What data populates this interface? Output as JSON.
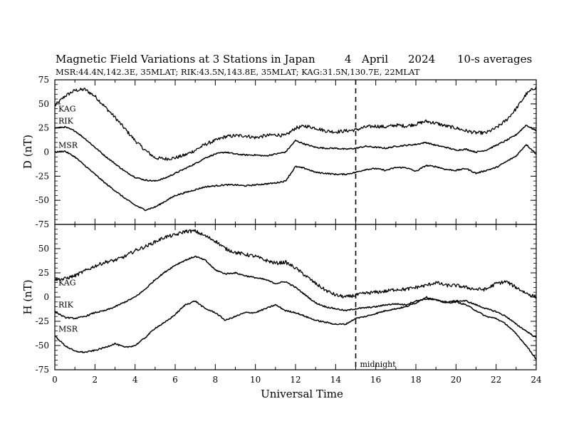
{
  "header": {
    "title": "Magnetic Field Variations at 3 Stations in Japan",
    "day": "4",
    "month": "April",
    "year": "2024",
    "averaging": "10-s averages",
    "stations": "MSR:44.4N,142.3E, 35MLAT;  RIK:43.5N,143.8E, 35MLAT;  KAG:31.5N,130.7E, 22MLAT"
  },
  "chart_data": [
    {
      "type": "line",
      "panel": "top",
      "ylabel": "D (nT)",
      "xlabel": "",
      "xlim": [
        0,
        24
      ],
      "ylim": [
        -75,
        75
      ],
      "yticks": [
        75,
        50,
        25,
        0,
        -25,
        -50,
        -75
      ],
      "ytick_labels": [
        "75",
        "50",
        "25",
        "0",
        "-25",
        "-50",
        "-75"
      ],
      "xticks": [
        0,
        2,
        4,
        6,
        8,
        10,
        12,
        14,
        16,
        18,
        20,
        22,
        24
      ],
      "series": [
        {
          "name": "KAG",
          "x": [
            0,
            0.5,
            1,
            1.5,
            2,
            2.5,
            3,
            3.5,
            4,
            4.5,
            5,
            5.5,
            6,
            6.5,
            7,
            7.5,
            8,
            8.5,
            9,
            9.5,
            10,
            10.5,
            11,
            11.5,
            12,
            12.5,
            13,
            13.5,
            14,
            14.5,
            15,
            15.5,
            16,
            16.5,
            17,
            17.5,
            18,
            18.5,
            19,
            19.5,
            20,
            20.5,
            21,
            21.5,
            22,
            22.5,
            23,
            23.5,
            24
          ],
          "y": [
            48,
            58,
            64,
            65,
            58,
            47,
            36,
            24,
            12,
            2,
            -6,
            -7,
            -6,
            -3,
            2,
            8,
            12,
            16,
            17,
            17,
            15,
            17,
            18,
            17,
            25,
            27,
            25,
            22,
            21,
            22,
            23,
            26,
            27,
            26,
            28,
            27,
            29,
            32,
            30,
            27,
            25,
            22,
            20,
            20,
            25,
            33,
            45,
            60,
            68
          ]
        },
        {
          "name": "RIK",
          "x": [
            0,
            0.5,
            1,
            1.5,
            2,
            2.5,
            3,
            3.5,
            4,
            4.5,
            5,
            5.5,
            6,
            6.5,
            7,
            7.5,
            8,
            8.5,
            9,
            9.5,
            10,
            10.5,
            11,
            11.5,
            12,
            12.5,
            13,
            13.5,
            14,
            14.5,
            15,
            15.5,
            16,
            16.5,
            17,
            17.5,
            18,
            18.5,
            19,
            19.5,
            20,
            20.5,
            21,
            21.5,
            22,
            22.5,
            23,
            23.5,
            24
          ],
          "y": [
            25,
            26,
            22,
            14,
            5,
            -4,
            -12,
            -20,
            -26,
            -29,
            -30,
            -27,
            -22,
            -17,
            -12,
            -6,
            -2,
            0,
            -2,
            -3,
            -3,
            -4,
            -2,
            0,
            12,
            8,
            5,
            4,
            4,
            3,
            4,
            6,
            5,
            4,
            6,
            7,
            8,
            10,
            7,
            5,
            2,
            3,
            0,
            2,
            7,
            12,
            18,
            28,
            22
          ]
        },
        {
          "name": "MSR",
          "x": [
            0,
            0.5,
            1,
            1.5,
            2,
            2.5,
            3,
            3.5,
            4,
            4.5,
            5,
            5.5,
            6,
            6.5,
            7,
            7.5,
            8,
            8.5,
            9,
            9.5,
            10,
            10.5,
            11,
            11.5,
            12,
            12.5,
            13,
            13.5,
            14,
            14.5,
            15,
            15.5,
            16,
            16.5,
            17,
            17.5,
            18,
            18.5,
            19,
            19.5,
            20,
            20.5,
            21,
            21.5,
            22,
            22.5,
            23,
            23.5,
            24
          ],
          "y": [
            0,
            1,
            -5,
            -14,
            -23,
            -32,
            -40,
            -48,
            -55,
            -60,
            -57,
            -51,
            -45,
            -42,
            -39,
            -36,
            -35,
            -34,
            -34,
            -35,
            -34,
            -33,
            -32,
            -30,
            -15,
            -17,
            -21,
            -22,
            -23,
            -23,
            -21,
            -18,
            -17,
            -19,
            -16,
            -16,
            -20,
            -14,
            -15,
            -18,
            -19,
            -17,
            -22,
            -19,
            -16,
            -10,
            -4,
            8,
            -2
          ]
        }
      ]
    },
    {
      "type": "line",
      "panel": "bottom",
      "ylabel": "H (nT)",
      "xlabel": "Universal Time",
      "xlim": [
        0,
        24
      ],
      "ylim": [
        -75,
        75
      ],
      "yticks": [
        75,
        50,
        25,
        0,
        -25,
        -50,
        -75
      ],
      "ytick_labels": [
        "",
        "50",
        "25",
        "0",
        "-25",
        "-50",
        "-75"
      ],
      "xticks": [
        0,
        2,
        4,
        6,
        8,
        10,
        12,
        14,
        16,
        18,
        20,
        22,
        24
      ],
      "xtick_labels": [
        "0",
        "2",
        "4",
        "6",
        "8",
        "10",
        "12",
        "14",
        "16",
        "18",
        "20",
        "22",
        "24"
      ],
      "series": [
        {
          "name": "KAG",
          "x": [
            0,
            0.5,
            1,
            1.5,
            2,
            2.5,
            3,
            3.5,
            4,
            4.5,
            5,
            5.5,
            6,
            6.5,
            7,
            7.5,
            8,
            8.5,
            9,
            9.5,
            10,
            10.5,
            11,
            11.5,
            12,
            12.5,
            13,
            13.5,
            14,
            14.5,
            15,
            15.5,
            16,
            16.5,
            17,
            17.5,
            18,
            18.5,
            19,
            19.5,
            20,
            20.5,
            21,
            21.5,
            22,
            22.5,
            23,
            23.5,
            24
          ],
          "y": [
            18,
            19,
            22,
            27,
            32,
            36,
            38,
            42,
            48,
            52,
            57,
            62,
            64,
            68,
            68,
            63,
            58,
            50,
            46,
            44,
            42,
            38,
            35,
            36,
            30,
            22,
            14,
            7,
            2,
            0,
            2,
            4,
            5,
            6,
            8,
            8,
            10,
            12,
            15,
            12,
            12,
            10,
            8,
            8,
            14,
            16,
            10,
            4,
            0
          ]
        },
        {
          "name": "RIK",
          "x": [
            0,
            0.5,
            1,
            1.5,
            2,
            2.5,
            3,
            3.5,
            4,
            4.5,
            5,
            5.5,
            6,
            6.5,
            7,
            7.5,
            8,
            8.5,
            9,
            9.5,
            10,
            10.5,
            11,
            11.5,
            12,
            12.5,
            13,
            13.5,
            14,
            14.5,
            15,
            15.5,
            16,
            16.5,
            17,
            17.5,
            18,
            18.5,
            19,
            19.5,
            20,
            20.5,
            21,
            21.5,
            22,
            22.5,
            23,
            23.5,
            24
          ],
          "y": [
            -15,
            -21,
            -22,
            -20,
            -16,
            -14,
            -10,
            -5,
            0,
            8,
            18,
            26,
            33,
            38,
            42,
            38,
            28,
            24,
            25,
            22,
            20,
            18,
            14,
            16,
            10,
            2,
            -6,
            -10,
            -12,
            -14,
            -12,
            -11,
            -10,
            -8,
            -7,
            -8,
            -4,
            -2,
            -3,
            -5,
            -4,
            -4,
            -8,
            -12,
            -15,
            -20,
            -28,
            -35,
            -42
          ]
        },
        {
          "name": "MSR",
          "x": [
            0,
            0.5,
            1,
            1.5,
            2,
            2.5,
            3,
            3.5,
            4,
            4.5,
            5,
            5.5,
            6,
            6.5,
            7,
            7.5,
            8,
            8.5,
            9,
            9.5,
            10,
            10.5,
            11,
            11.5,
            12,
            12.5,
            13,
            13.5,
            14,
            14.5,
            15,
            15.5,
            16,
            16.5,
            17,
            17.5,
            18,
            18.5,
            19,
            19.5,
            20,
            20.5,
            21,
            21.5,
            22,
            22.5,
            23,
            23.5,
            24
          ],
          "y": [
            -40,
            -50,
            -56,
            -57,
            -55,
            -52,
            -48,
            -52,
            -50,
            -42,
            -32,
            -26,
            -18,
            -8,
            -4,
            -12,
            -16,
            -24,
            -20,
            -16,
            -16,
            -12,
            -8,
            -14,
            -16,
            -20,
            -24,
            -26,
            -28,
            -28,
            -22,
            -20,
            -17,
            -14,
            -12,
            -10,
            -6,
            0,
            -3,
            -6,
            -5,
            -8,
            -14,
            -20,
            -22,
            -28,
            -38,
            -50,
            -64
          ]
        }
      ]
    }
  ],
  "annotations": {
    "midnight_label": "midnight",
    "midnight_ut": 15
  }
}
